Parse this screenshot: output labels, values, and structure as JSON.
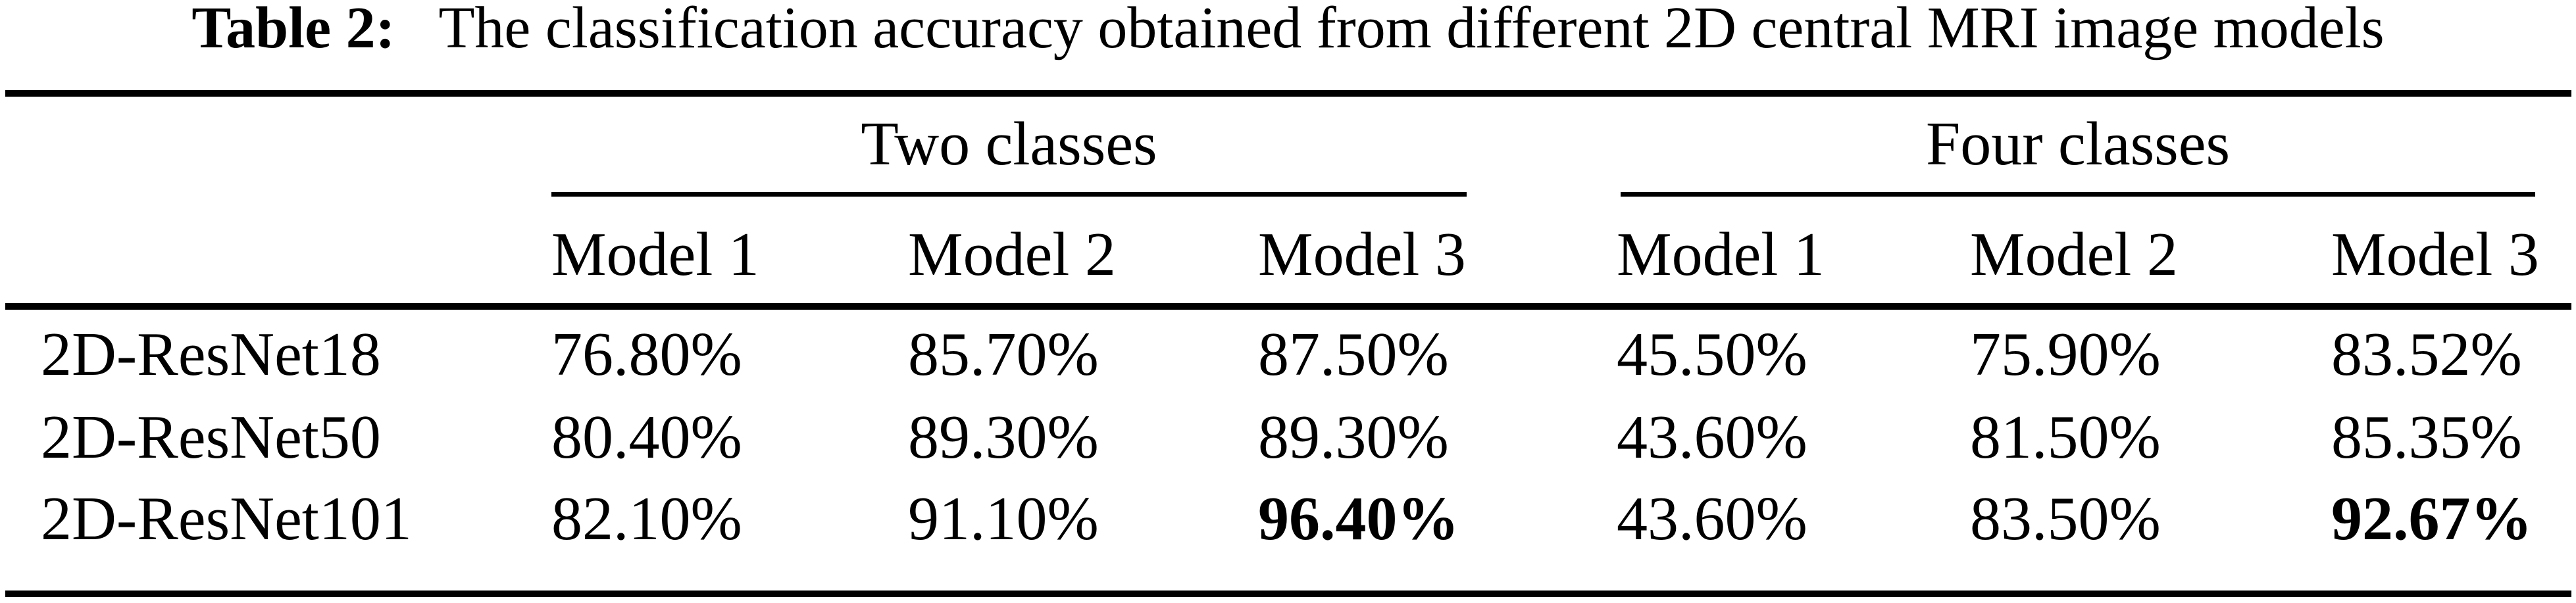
{
  "caption": {
    "label": "Table 2:",
    "text": "The classification accuracy obtained from different 2D central MRI image models"
  },
  "table": {
    "column_groups": [
      {
        "label": "Two classes",
        "span": 3
      },
      {
        "label": "Four classes",
        "span": 3
      }
    ],
    "sub_headers": [
      "Model 1",
      "Model 2",
      "Model 3",
      "Model 1",
      "Model 2",
      "Model 3"
    ],
    "rows": [
      {
        "label": "2D-ResNet18",
        "values": [
          "76.80%",
          "85.70%",
          "87.50%",
          "45.50%",
          "75.90%",
          "83.52%"
        ]
      },
      {
        "label": "2D-ResNet50",
        "values": [
          "80.40%",
          "89.30%",
          "89.30%",
          "43.60%",
          "81.50%",
          "85.35%"
        ]
      },
      {
        "label": "2D-ResNet101",
        "values": [
          "82.10%",
          "91.10%",
          "96.40%",
          "43.60%",
          "83.50%",
          "92.67%"
        ]
      }
    ],
    "bold_values": [
      "96.40%",
      "92.67%"
    ],
    "text_color": "#000000",
    "background_color": "#ffffff"
  }
}
